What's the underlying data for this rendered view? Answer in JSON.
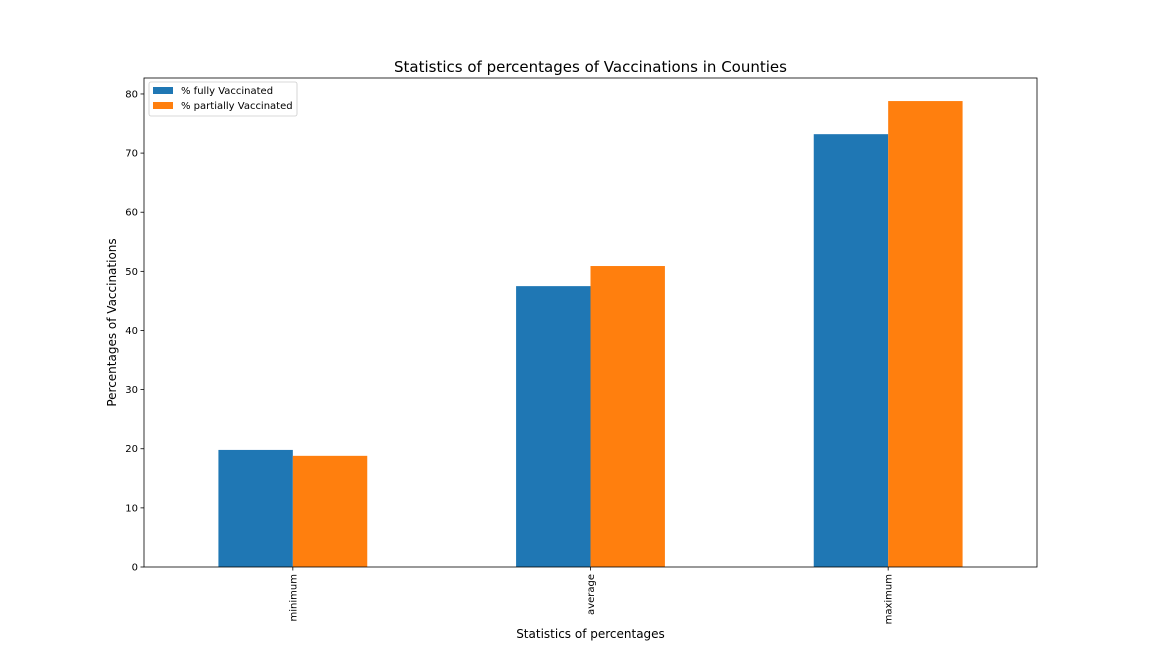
{
  "chart_data": {
    "type": "bar",
    "title": "Statistics of percentages of Vaccinations in Counties",
    "xlabel": "Statistics of percentages",
    "ylabel": "Percentages of Vaccinations",
    "categories": [
      "minimum",
      "average",
      "maximum"
    ],
    "series": [
      {
        "name": "% fully Vaccinated",
        "color": "#1f77b4",
        "values": [
          19.8,
          47.5,
          73.2
        ]
      },
      {
        "name": "% partially Vaccinated",
        "color": "#ff7f0e",
        "values": [
          18.8,
          50.9,
          78.8
        ]
      }
    ],
    "ylim": [
      0,
      82.7
    ],
    "yticks": [
      0,
      10,
      20,
      30,
      40,
      50,
      60,
      70,
      80
    ],
    "ytick_labels": [
      "0",
      "10",
      "20",
      "30",
      "40",
      "50",
      "60",
      "70",
      "80"
    ],
    "xtick_rotation": "vertical",
    "grid": false,
    "legend_position": "top-left"
  }
}
